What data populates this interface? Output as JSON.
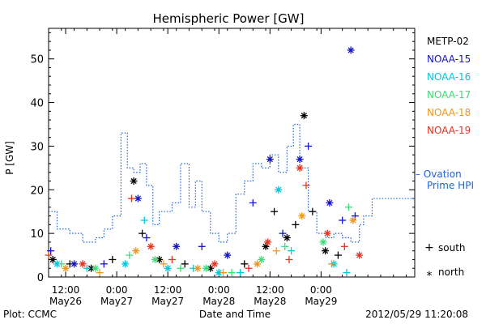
{
  "chart_data": {
    "type": "scatter",
    "title": "Hemispheric Power [GW]",
    "ylabel": "P [GW]",
    "xlabel": "Date and Time",
    "ylim": [
      0,
      57
    ],
    "xlim": [
      "2012-05-26 08:00",
      "2012-05-29 22:00"
    ],
    "yticks": [
      0,
      10,
      20,
      30,
      40,
      50
    ],
    "xticks": [
      {
        "time": "2012-05-26 12:00",
        "label1": "12:00",
        "label2": "May26"
      },
      {
        "time": "2012-05-27 00:00",
        "label1": "0:00",
        "label2": "May27"
      },
      {
        "time": "2012-05-27 12:00",
        "label1": "12:00",
        "label2": "May27"
      },
      {
        "time": "2012-05-28 00:00",
        "label1": "0:00",
        "label2": "May28"
      },
      {
        "time": "2012-05-28 12:00",
        "label1": "12:00",
        "label2": "May28"
      },
      {
        "time": "2012-05-29 00:00",
        "label1": "0:00",
        "label2": "May29"
      }
    ],
    "legend_placement": "right",
    "series": [
      {
        "name": "METP-02",
        "color": "#000000",
        "points": [
          [
            "2012-05-26 09:00",
            4
          ],
          [
            "2012-05-26 13:00",
            3
          ],
          [
            "2012-05-26 18:00",
            2
          ],
          [
            "2012-05-26 23:00",
            4
          ],
          [
            "2012-05-27 04:00",
            22
          ],
          [
            "2012-05-27 06:00",
            10
          ],
          [
            "2012-05-27 10:00",
            4
          ],
          [
            "2012-05-27 16:00",
            3
          ],
          [
            "2012-05-27 22:00",
            2
          ],
          [
            "2012-05-28 06:00",
            3
          ],
          [
            "2012-05-28 11:00",
            7
          ],
          [
            "2012-05-28 13:00",
            15
          ],
          [
            "2012-05-28 16:00",
            9
          ],
          [
            "2012-05-28 18:00",
            12
          ],
          [
            "2012-05-28 20:00",
            37
          ],
          [
            "2012-05-28 22:00",
            15
          ],
          [
            "2012-05-29 01:00",
            6
          ],
          [
            "2012-05-29 04:00",
            5
          ]
        ]
      },
      {
        "name": "NOAA-15",
        "color": "#1414c8",
        "points": [
          [
            "2012-05-26 08:30",
            6
          ],
          [
            "2012-05-26 14:00",
            3
          ],
          [
            "2012-05-26 21:00",
            3
          ],
          [
            "2012-05-27 05:00",
            18
          ],
          [
            "2012-05-27 07:00",
            9
          ],
          [
            "2012-05-27 14:00",
            7
          ],
          [
            "2012-05-27 20:00",
            7
          ],
          [
            "2012-05-28 02:00",
            5
          ],
          [
            "2012-05-28 08:00",
            17
          ],
          [
            "2012-05-28 12:00",
            27
          ],
          [
            "2012-05-28 15:00",
            10
          ],
          [
            "2012-05-28 19:00",
            27
          ],
          [
            "2012-05-28 21:00",
            30
          ],
          [
            "2012-05-29 02:00",
            17
          ],
          [
            "2012-05-29 05:00",
            13
          ],
          [
            "2012-05-29 07:00",
            52
          ],
          [
            "2012-05-29 08:00",
            14
          ]
        ]
      },
      {
        "name": "NOAA-16",
        "color": "#00c8dc",
        "points": [
          [
            "2012-05-26 10:00",
            3
          ],
          [
            "2012-05-26 17:00",
            2
          ],
          [
            "2012-05-27 02:00",
            3
          ],
          [
            "2012-05-27 06:30",
            13
          ],
          [
            "2012-05-27 12:00",
            2
          ],
          [
            "2012-05-27 18:00",
            2
          ],
          [
            "2012-05-28 00:00",
            1
          ],
          [
            "2012-05-28 05:00",
            1
          ],
          [
            "2012-05-28 14:00",
            20
          ],
          [
            "2012-05-28 17:00",
            6
          ],
          [
            "2012-05-29 03:00",
            3
          ],
          [
            "2012-05-29 06:00",
            1
          ]
        ]
      },
      {
        "name": "NOAA-17",
        "color": "#3cdc78",
        "points": [
          [
            "2012-05-26 11:00",
            3
          ],
          [
            "2012-05-26 19:00",
            2
          ],
          [
            "2012-05-27 03:00",
            5
          ],
          [
            "2012-05-27 09:00",
            4
          ],
          [
            "2012-05-27 15:00",
            2
          ],
          [
            "2012-05-27 21:00",
            2
          ],
          [
            "2012-05-28 03:00",
            1
          ],
          [
            "2012-05-28 10:00",
            4
          ],
          [
            "2012-05-28 15:30",
            7
          ],
          [
            "2012-05-29 00:30",
            8
          ],
          [
            "2012-05-29 06:30",
            16
          ]
        ]
      },
      {
        "name": "NOAA-18",
        "color": "#f0961e",
        "points": [
          [
            "2012-05-26 12:00",
            2
          ],
          [
            "2012-05-26 20:00",
            1
          ],
          [
            "2012-05-27 04:30",
            6
          ],
          [
            "2012-05-27 11:00",
            3
          ],
          [
            "2012-05-27 19:00",
            2
          ],
          [
            "2012-05-28 01:00",
            1
          ],
          [
            "2012-05-28 09:00",
            3
          ],
          [
            "2012-05-28 13:30",
            6
          ],
          [
            "2012-05-28 19:30",
            14
          ],
          [
            "2012-05-29 02:30",
            3
          ],
          [
            "2012-05-29 07:30",
            13
          ]
        ]
      },
      {
        "name": "NOAA-19",
        "color": "#e6321e",
        "points": [
          [
            "2012-05-26 08:00",
            5
          ],
          [
            "2012-05-26 16:00",
            3
          ],
          [
            "2012-05-27 03:30",
            18
          ],
          [
            "2012-05-27 08:00",
            7
          ],
          [
            "2012-05-27 13:00",
            4
          ],
          [
            "2012-05-27 23:00",
            3
          ],
          [
            "2012-05-28 07:00",
            2
          ],
          [
            "2012-05-28 11:30",
            8
          ],
          [
            "2012-05-28 16:30",
            4
          ],
          [
            "2012-05-28 19:00",
            25
          ],
          [
            "2012-05-28 20:30",
            21
          ],
          [
            "2012-05-29 01:30",
            10
          ],
          [
            "2012-05-29 05:30",
            7
          ],
          [
            "2012-05-29 09:00",
            5
          ]
        ]
      }
    ],
    "ovation": {
      "name_line1": "– Ovation",
      "name_line2": "Prime HPI",
      "color": "#1e64d2",
      "step_points": [
        [
          "2012-05-26 08:00",
          15
        ],
        [
          "2012-05-26 10:00",
          11
        ],
        [
          "2012-05-26 13:00",
          10
        ],
        [
          "2012-05-26 16:00",
          8
        ],
        [
          "2012-05-26 19:00",
          9
        ],
        [
          "2012-05-26 21:00",
          11
        ],
        [
          "2012-05-26 23:00",
          14
        ],
        [
          "2012-05-27 01:00",
          33
        ],
        [
          "2012-05-27 02:30",
          25
        ],
        [
          "2012-05-27 04:00",
          24
        ],
        [
          "2012-05-27 05:30",
          26
        ],
        [
          "2012-05-27 07:00",
          21
        ],
        [
          "2012-05-27 08:30",
          12
        ],
        [
          "2012-05-27 10:00",
          15
        ],
        [
          "2012-05-27 13:00",
          17
        ],
        [
          "2012-05-27 15:00",
          26
        ],
        [
          "2012-05-27 17:00",
          16
        ],
        [
          "2012-05-27 18:30",
          22
        ],
        [
          "2012-05-27 20:00",
          15
        ],
        [
          "2012-05-27 22:00",
          10
        ],
        [
          "2012-05-28 00:00",
          8
        ],
        [
          "2012-05-28 02:00",
          10
        ],
        [
          "2012-05-28 04:00",
          19
        ],
        [
          "2012-05-28 06:00",
          22
        ],
        [
          "2012-05-28 08:00",
          26
        ],
        [
          "2012-05-28 10:00",
          25
        ],
        [
          "2012-05-28 12:00",
          28
        ],
        [
          "2012-05-28 14:00",
          24
        ],
        [
          "2012-05-28 16:00",
          30
        ],
        [
          "2012-05-28 17:30",
          35
        ],
        [
          "2012-05-28 19:00",
          25
        ],
        [
          "2012-05-28 21:00",
          15
        ],
        [
          "2012-05-28 23:00",
          10
        ],
        [
          "2012-05-29 01:00",
          9
        ],
        [
          "2012-05-29 03:00",
          10
        ],
        [
          "2012-05-29 05:00",
          9
        ],
        [
          "2012-05-29 07:00",
          8
        ],
        [
          "2012-05-29 09:00",
          12
        ],
        [
          "2012-05-29 10:00",
          14
        ],
        [
          "2012-05-29 12:00",
          18
        ],
        [
          "2012-05-29 22:00",
          18
        ]
      ]
    },
    "marker_key": [
      {
        "symbol": "+",
        "label": "south"
      },
      {
        "symbol": "*",
        "label": "north"
      }
    ],
    "footer": {
      "left": "Plot: CCMC",
      "right": "2012/05/29 11:20:08"
    }
  }
}
